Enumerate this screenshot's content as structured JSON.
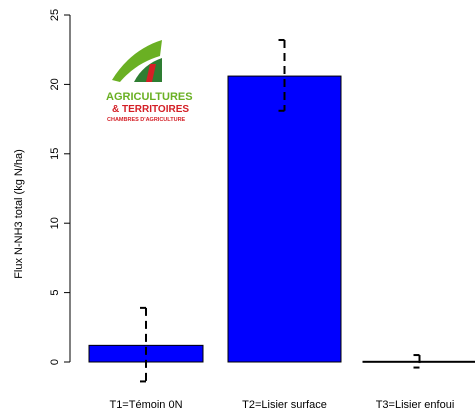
{
  "chart_data": {
    "type": "bar",
    "title": "",
    "xlabel": "",
    "ylabel": "Flux N-NH3 total (kg N/ha)",
    "ylim": [
      0,
      25
    ],
    "yticks": [
      0,
      5,
      10,
      15,
      20,
      25
    ],
    "grid": false,
    "categories": [
      "T1=Témoin 0N",
      "T2=Lisier surface",
      "T3=Lisier enfoui"
    ],
    "values": [
      1.2,
      20.6,
      0.05
    ],
    "error_bars": {
      "style": "dashed",
      "low": [
        -1.4,
        18.1,
        -0.4
      ],
      "high": [
        3.9,
        23.2,
        0.5
      ]
    },
    "bar_color": "#0000ff",
    "error_color": "#000000"
  },
  "logo": {
    "line1": "AGRICULTURES",
    "line2": "& TERRITOIRES",
    "line3": "CHAMBRES D'AGRICULTURE",
    "colors": {
      "green": "#6ab023",
      "red": "#d41f26",
      "darkgreen": "#2e7d32"
    }
  }
}
